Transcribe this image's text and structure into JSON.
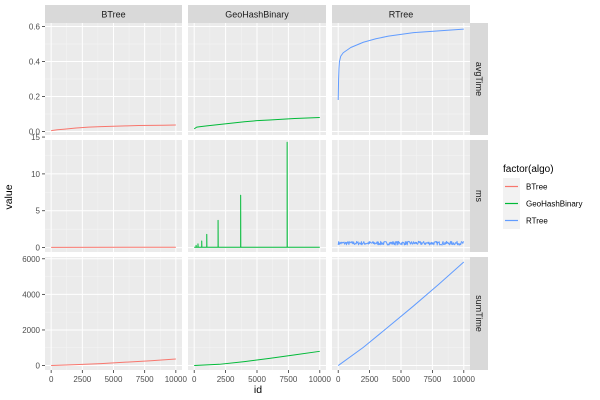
{
  "chart_data": {
    "type": "line",
    "xlabel": "id",
    "ylabel": "value",
    "column_facets": [
      "BTree",
      "GeoHashBinary",
      "RTree"
    ],
    "row_facets": [
      "avgTime",
      "ms",
      "sumTime"
    ],
    "x_range": [
      0,
      10000
    ],
    "x_ticks": [
      0,
      2500,
      5000,
      7500,
      10000
    ],
    "x_tick_labels": [
      "0",
      "2500",
      "5000",
      "7500",
      "10000"
    ],
    "rows": [
      {
        "facet": "avgTime",
        "y_range": [
          -0.02,
          0.62
        ],
        "y_ticks": [
          0.0,
          0.2,
          0.4,
          0.6
        ],
        "y_tick_labels": [
          "0.0",
          "0.2",
          "0.4",
          "0.6"
        ]
      },
      {
        "facet": "ms",
        "y_range": [
          -0.6,
          14.6
        ],
        "y_ticks": [
          0,
          5,
          10,
          15
        ],
        "y_tick_labels": [
          "0",
          "5",
          "10",
          "15"
        ]
      },
      {
        "facet": "sumTime",
        "y_range": [
          -250,
          6100
        ],
        "y_ticks": [
          0,
          2000,
          4000,
          6000
        ],
        "y_tick_labels": [
          "0",
          "2000",
          "4000",
          "6000"
        ]
      }
    ],
    "legend": {
      "title": "factor(algo)",
      "position": "right",
      "entries": [
        {
          "name": "BTree",
          "color": "#F8766D"
        },
        {
          "name": "GeoHashBinary",
          "color": "#00BA38"
        },
        {
          "name": "RTree",
          "color": "#619CFF"
        }
      ]
    },
    "series": [
      {
        "algo": "BTree",
        "facet": "avgTime",
        "color": "#F8766D",
        "x": [
          0,
          500,
          1000,
          2000,
          3000,
          4000,
          5000,
          6000,
          7000,
          8000,
          9000,
          10000
        ],
        "y": [
          0.005,
          0.01,
          0.013,
          0.02,
          0.025,
          0.028,
          0.03,
          0.032,
          0.034,
          0.035,
          0.036,
          0.037
        ]
      },
      {
        "algo": "GeoHashBinary",
        "facet": "avgTime",
        "color": "#00BA38",
        "x": [
          0,
          200,
          500,
          1000,
          2000,
          3000,
          4000,
          5000,
          6000,
          7000,
          8000,
          9000,
          10000
        ],
        "y": [
          0.015,
          0.025,
          0.028,
          0.032,
          0.04,
          0.048,
          0.056,
          0.062,
          0.066,
          0.07,
          0.074,
          0.077,
          0.08
        ]
      },
      {
        "algo": "RTree",
        "facet": "avgTime",
        "color": "#619CFF",
        "x": [
          0,
          30,
          60,
          100,
          200,
          400,
          700,
          1000,
          2000,
          3000,
          4000,
          5000,
          6000,
          7000,
          8000,
          9000,
          10000
        ],
        "y": [
          0.18,
          0.3,
          0.36,
          0.4,
          0.43,
          0.45,
          0.465,
          0.48,
          0.51,
          0.53,
          0.545,
          0.555,
          0.565,
          0.57,
          0.575,
          0.58,
          0.585
        ]
      },
      {
        "algo": "BTree",
        "facet": "ms",
        "color": "#F8766D",
        "x": [
          0,
          10000
        ],
        "y": [
          0.03,
          0.04
        ]
      },
      {
        "algo": "GeoHashBinary",
        "facet": "ms",
        "color": "#00BA38",
        "x": [
          0,
          150,
          150,
          160,
          300,
          300,
          310,
          600,
          600,
          610,
          1000,
          1000,
          1010,
          1900,
          1900,
          1910,
          3700,
          3700,
          3710,
          7400,
          7400,
          7410,
          10000
        ],
        "y": [
          0.05,
          0.05,
          0.3,
          0.05,
          0.05,
          0.5,
          0.05,
          0.05,
          0.9,
          0.05,
          0.05,
          1.8,
          0.05,
          0.05,
          3.7,
          0.05,
          0.05,
          7.1,
          0.05,
          0.05,
          14.3,
          0.05,
          0.05
        ]
      },
      {
        "algo": "RTree",
        "facet": "ms",
        "color": "#619CFF",
        "x": [
          0,
          10000
        ],
        "y": [
          0.6,
          0.6
        ],
        "noise": 0.25
      },
      {
        "algo": "BTree",
        "facet": "sumTime",
        "color": "#F8766D",
        "x": [
          0,
          2000,
          4000,
          6000,
          8000,
          10000
        ],
        "y": [
          0,
          50,
          110,
          190,
          270,
          370
        ]
      },
      {
        "algo": "GeoHashBinary",
        "facet": "sumTime",
        "color": "#00BA38",
        "x": [
          0,
          2000,
          4000,
          6000,
          8000,
          10000
        ],
        "y": [
          0,
          70,
          220,
          400,
          600,
          800
        ]
      },
      {
        "algo": "RTree",
        "facet": "sumTime",
        "color": "#619CFF",
        "x": [
          0,
          2000,
          4000,
          6000,
          8000,
          10000
        ],
        "y": [
          0,
          1020,
          2180,
          3350,
          4560,
          5820
        ]
      }
    ]
  }
}
